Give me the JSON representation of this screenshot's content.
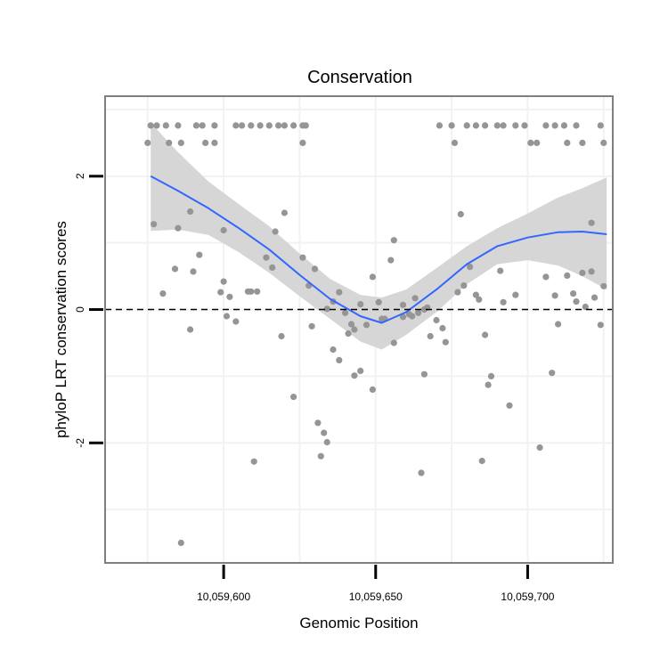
{
  "chart_data": {
    "type": "scatter",
    "title": "Conservation",
    "xlabel": "Genomic Position",
    "ylabel": "phyloP LRT conservation scores",
    "xlim": [
      10059561,
      10059728
    ],
    "ylim": [
      -3.8,
      3.2
    ],
    "x_ticks": [
      10059600,
      10059650,
      10059700
    ],
    "x_tick_labels": [
      "10,059,600",
      "10,059,650",
      "10,059,700"
    ],
    "y_ticks": [
      2,
      0,
      -2
    ],
    "y_tick_labels": [
      "2",
      "0",
      "-2"
    ],
    "y_minor_grid": [
      3,
      1,
      -1,
      -3
    ],
    "x_minor_grid": [
      10059575,
      10059625,
      10059675,
      10059725
    ],
    "grid": true,
    "reference_line": {
      "y": 0,
      "style": "dashed"
    },
    "colors": {
      "points": "#959595",
      "smooth_line": "#3366FF",
      "ribbon": "#d6d6d6",
      "panel_border": "#7f7f7f",
      "grid": "#f2f2f2"
    },
    "smooth": {
      "x": [
        10059576,
        10059585,
        10059595,
        10059605,
        10059615,
        10059625,
        10059635,
        10059645,
        10059652,
        10059660,
        10059670,
        10059680,
        10059690,
        10059700,
        10059710,
        10059718,
        10059726
      ],
      "y": [
        2.0,
        1.78,
        1.52,
        1.22,
        0.9,
        0.52,
        0.16,
        -0.1,
        -0.2,
        -0.04,
        0.3,
        0.68,
        0.95,
        1.08,
        1.16,
        1.17,
        1.13
      ],
      "lower": [
        1.18,
        1.2,
        1.12,
        0.86,
        0.55,
        0.2,
        -0.14,
        -0.48,
        -0.6,
        -0.38,
        -0.04,
        0.38,
        0.68,
        0.74,
        0.66,
        0.5,
        0.3
      ],
      "upper": [
        2.8,
        2.36,
        1.92,
        1.58,
        1.25,
        0.84,
        0.46,
        0.22,
        0.18,
        0.3,
        0.62,
        0.95,
        1.22,
        1.44,
        1.68,
        1.82,
        1.98
      ]
    },
    "points": [
      [
        10059576,
        2.76
      ],
      [
        10059578,
        2.76
      ],
      [
        10059581,
        2.76
      ],
      [
        10059585,
        2.76
      ],
      [
        10059591,
        2.76
      ],
      [
        10059593,
        2.76
      ],
      [
        10059597,
        2.76
      ],
      [
        10059604,
        2.76
      ],
      [
        10059606,
        2.76
      ],
      [
        10059609,
        2.76
      ],
      [
        10059612,
        2.76
      ],
      [
        10059615,
        2.76
      ],
      [
        10059618,
        2.76
      ],
      [
        10059620,
        2.76
      ],
      [
        10059623,
        2.76
      ],
      [
        10059626,
        2.76
      ],
      [
        10059627,
        2.76
      ],
      [
        10059671,
        2.76
      ],
      [
        10059675,
        2.76
      ],
      [
        10059680,
        2.76
      ],
      [
        10059683,
        2.76
      ],
      [
        10059686,
        2.76
      ],
      [
        10059690,
        2.76
      ],
      [
        10059692,
        2.76
      ],
      [
        10059696,
        2.76
      ],
      [
        10059699,
        2.76
      ],
      [
        10059706,
        2.76
      ],
      [
        10059709,
        2.76
      ],
      [
        10059712,
        2.76
      ],
      [
        10059716,
        2.76
      ],
      [
        10059724,
        2.76
      ],
      [
        10059575,
        2.5
      ],
      [
        10059582,
        2.5
      ],
      [
        10059586,
        2.5
      ],
      [
        10059594,
        2.5
      ],
      [
        10059597,
        2.5
      ],
      [
        10059626,
        2.5
      ],
      [
        10059676,
        2.5
      ],
      [
        10059701,
        2.5
      ],
      [
        10059703,
        2.5
      ],
      [
        10059713,
        2.5
      ],
      [
        10059718,
        2.5
      ],
      [
        10059725,
        2.5
      ],
      [
        10059577,
        1.28
      ],
      [
        10059585,
        1.22
      ],
      [
        10059589,
        1.47
      ],
      [
        10059600,
        1.19
      ],
      [
        10059617,
        1.17
      ],
      [
        10059620,
        1.45
      ],
      [
        10059678,
        1.43
      ],
      [
        10059721,
        1.3
      ],
      [
        10059580,
        0.24
      ],
      [
        10059584,
        0.61
      ],
      [
        10059590,
        0.57
      ],
      [
        10059592,
        0.82
      ],
      [
        10059599,
        0.26
      ],
      [
        10059600,
        0.42
      ],
      [
        10059602,
        0.19
      ],
      [
        10059608,
        0.27
      ],
      [
        10059609,
        0.27
      ],
      [
        10059611,
        0.27
      ],
      [
        10059614,
        0.78
      ],
      [
        10059616,
        0.63
      ],
      [
        10059626,
        0.78
      ],
      [
        10059628,
        0.36
      ],
      [
        10059630,
        0.61
      ],
      [
        10059636,
        0.12
      ],
      [
        10059638,
        0.26
      ],
      [
        10059645,
        0.08
      ],
      [
        10059649,
        0.49
      ],
      [
        10059651,
        0.11
      ],
      [
        10059653,
        -0.14
      ],
      [
        10059655,
        0.74
      ],
      [
        10059656,
        1.04
      ],
      [
        10059659,
        0.07
      ],
      [
        10059661,
        -0.07
      ],
      [
        10059663,
        0.17
      ],
      [
        10059664,
        -0.05
      ],
      [
        10059667,
        0.03
      ],
      [
        10059670,
        -0.16
      ],
      [
        10059672,
        -0.28
      ],
      [
        10059677,
        0.26
      ],
      [
        10059679,
        0.36
      ],
      [
        10059681,
        0.64
      ],
      [
        10059683,
        0.22
      ],
      [
        10059684,
        0.15
      ],
      [
        10059691,
        0.58
      ],
      [
        10059692,
        0.11
      ],
      [
        10059696,
        0.22
      ],
      [
        10059706,
        0.49
      ],
      [
        10059709,
        0.21
      ],
      [
        10059710,
        -0.22
      ],
      [
        10059713,
        0.51
      ],
      [
        10059715,
        0.24
      ],
      [
        10059716,
        0.12
      ],
      [
        10059718,
        0.55
      ],
      [
        10059719,
        0.04
      ],
      [
        10059721,
        0.57
      ],
      [
        10059722,
        0.18
      ],
      [
        10059724,
        -0.23
      ],
      [
        10059725,
        0.35
      ],
      [
        10059589,
        -0.3
      ],
      [
        10059601,
        -0.1
      ],
      [
        10059604,
        -0.18
      ],
      [
        10059619,
        -0.4
      ],
      [
        10059629,
        -0.25
      ],
      [
        10059634,
        0.01
      ],
      [
        10059640,
        -0.05
      ],
      [
        10059641,
        -0.36
      ],
      [
        10059642,
        -0.22
      ],
      [
        10059643,
        -0.3
      ],
      [
        10059647,
        -0.23
      ],
      [
        10059652,
        -0.14
      ],
      [
        10059656,
        -0.5
      ],
      [
        10059659,
        -0.11
      ],
      [
        10059662,
        -0.1
      ],
      [
        10059666,
        0.0
      ],
      [
        10059668,
        -0.4
      ],
      [
        10059673,
        -0.49
      ],
      [
        10059686,
        -0.38
      ],
      [
        10059636,
        -0.6
      ],
      [
        10059638,
        -0.76
      ],
      [
        10059643,
        -0.99
      ],
      [
        10059645,
        -0.92
      ],
      [
        10059649,
        -1.2
      ],
      [
        10059666,
        -0.97
      ],
      [
        10059623,
        -1.31
      ],
      [
        10059687,
        -1.13
      ],
      [
        10059688,
        -1.0
      ],
      [
        10059694,
        -1.44
      ],
      [
        10059708,
        -0.95
      ],
      [
        10059631,
        -1.7
      ],
      [
        10059632,
        -2.2
      ],
      [
        10059633,
        -1.85
      ],
      [
        10059634,
        -1.99
      ],
      [
        10059610,
        -2.28
      ],
      [
        10059665,
        -2.45
      ],
      [
        10059685,
        -2.27
      ],
      [
        10059704,
        -2.07
      ],
      [
        10059586,
        -3.5
      ]
    ]
  }
}
